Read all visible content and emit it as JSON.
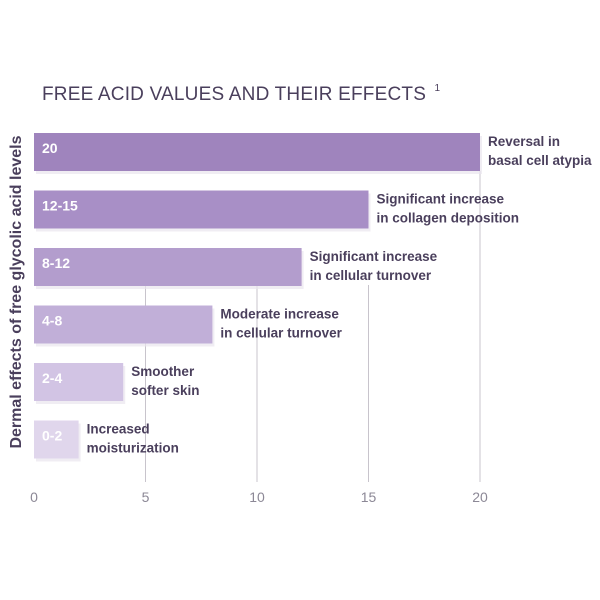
{
  "chart_data": {
    "type": "bar",
    "orientation": "horizontal",
    "title": "FREE ACID VALUES AND THEIR EFFECTS",
    "title_superscript": "1",
    "ylabel": "Dermal effects of free glycolic acid levels",
    "xlim": [
      0,
      20
    ],
    "xticks": [
      "0",
      "5",
      "10",
      "15",
      "20"
    ],
    "grid": "vertical",
    "bars": [
      {
        "label": "20",
        "value": 20,
        "effect": [
          "Reversal in",
          "basal cell atypia"
        ],
        "color": "#9f84bd"
      },
      {
        "label": "12-15",
        "value": 15,
        "effect": [
          "Significant increase",
          "in collagen deposition"
        ],
        "color": "#a88fc6"
      },
      {
        "label": "8-12",
        "value": 12,
        "effect": [
          "Significant increase",
          "in cellular turnover"
        ],
        "color": "#b39dcd"
      },
      {
        "label": "4-8",
        "value": 8,
        "effect": [
          "Moderate increase",
          "in cellular turnover"
        ],
        "color": "#c1afd8"
      },
      {
        "label": "2-4",
        "value": 4,
        "effect": [
          "Smoother",
          "softer skin"
        ],
        "color": "#d2c4e4"
      },
      {
        "label": "0-2",
        "value": 2,
        "effect": [
          "Increased",
          "moisturization"
        ],
        "color": "#e0d6ec"
      }
    ]
  }
}
